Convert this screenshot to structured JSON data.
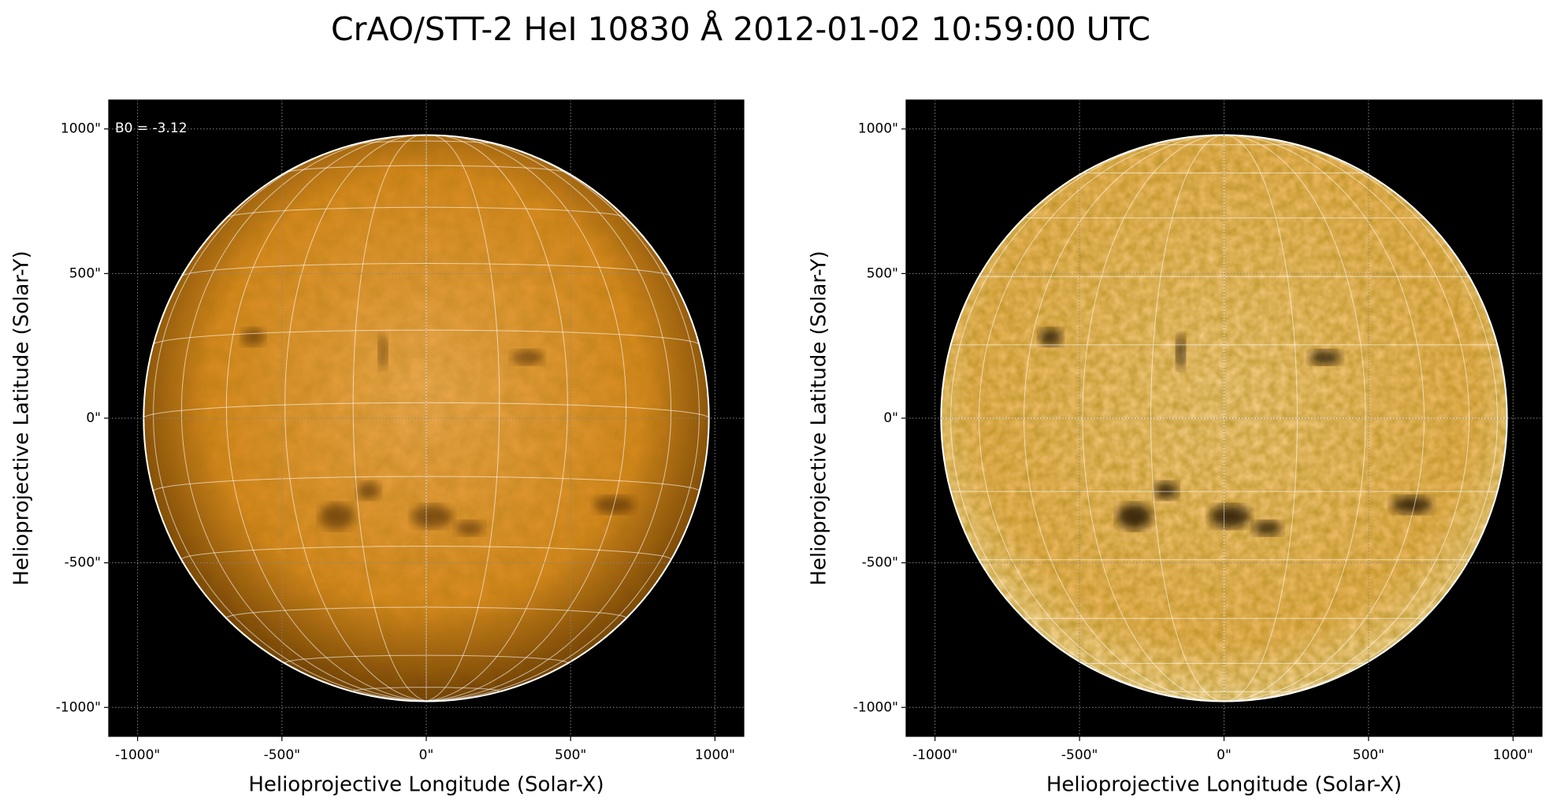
{
  "title": "CrAO/STT-2 HeI 10830 Å 2012-01-02 10:59:00 UTC",
  "chart_data": [
    {
      "type": "image",
      "xlabel": "Helioprojective Longitude (Solar-X)",
      "ylabel": "Helioprojective Latitude (Solar-Y)",
      "xlim": [
        -1100,
        1100
      ],
      "ylim": [
        -1100,
        1100
      ],
      "xticks": [
        {
          "value": -1000,
          "label": "-1000\""
        },
        {
          "value": -500,
          "label": "-500\""
        },
        {
          "value": 0,
          "label": "0\""
        },
        {
          "value": 500,
          "label": "500\""
        },
        {
          "value": 1000,
          "label": "1000\""
        }
      ],
      "yticks": [
        {
          "value": -1000,
          "label": "-1000\""
        },
        {
          "value": -500,
          "label": "-500\""
        },
        {
          "value": 0,
          "label": "0\""
        },
        {
          "value": 500,
          "label": "500\""
        },
        {
          "value": 1000,
          "label": "1000\""
        }
      ],
      "solar_radius": 979,
      "b0": {
        "value": -3.12,
        "label": "B0 = -3.12"
      },
      "grid": true,
      "color": "#d98a1f"
    },
    {
      "type": "image",
      "xlabel": "Helioprojective Longitude (Solar-X)",
      "ylabel": "Helioprojective Latitude (Solar-Y)",
      "xlim": [
        -1100,
        1100
      ],
      "ylim": [
        -1100,
        1100
      ],
      "xticks": [
        {
          "value": -1000,
          "label": "-1000\""
        },
        {
          "value": -500,
          "label": "-500\""
        },
        {
          "value": 0,
          "label": "0\""
        },
        {
          "value": 500,
          "label": "500\""
        },
        {
          "value": 1000,
          "label": "1000\""
        }
      ],
      "yticks": [
        {
          "value": -1000,
          "label": "-1000\""
        },
        {
          "value": -500,
          "label": "-500\""
        },
        {
          "value": 0,
          "label": "0\""
        },
        {
          "value": 500,
          "label": "500\""
        },
        {
          "value": 1000,
          "label": "1000\""
        }
      ],
      "solar_radius": 979,
      "grid": true,
      "color": "#eeb860"
    }
  ]
}
